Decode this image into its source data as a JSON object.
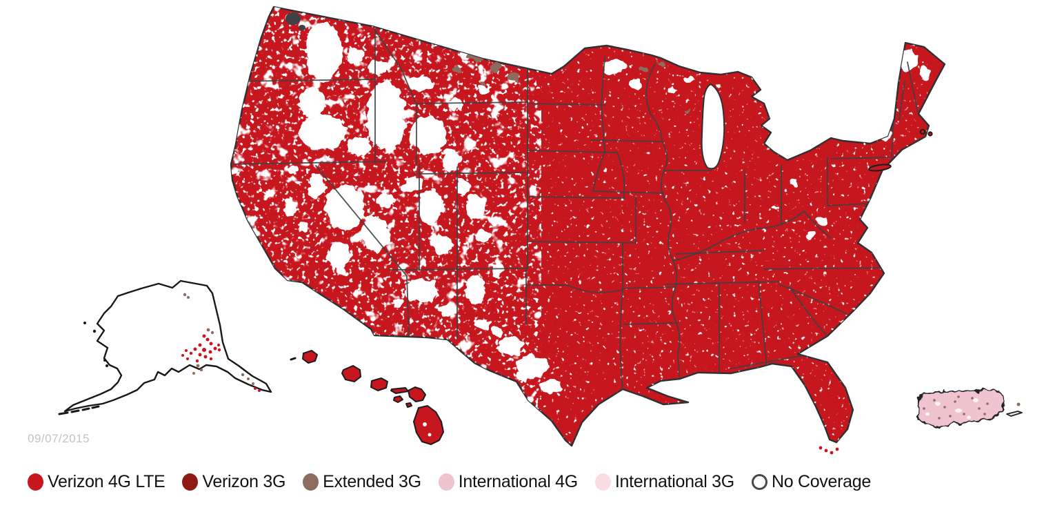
{
  "map": {
    "date_stamp": "09/07/2015",
    "colors": {
      "verizon_4g_lte": "#c6161e",
      "verizon_3g": "#8e1a14",
      "extended_3g": "#8d6c60",
      "international_4g": "#efc3d0",
      "international_3g": "#fadde4",
      "no_coverage": "#ffffff",
      "coast": "#2e3133",
      "state_line": "#3c4145",
      "label": "#121212",
      "date": "#c3c2c8",
      "bg": "#ffffff"
    },
    "regions": {
      "continental_us": "Verizon 4G LTE",
      "alaska": "No Coverage with scattered Verizon 4G LTE and Extended 3G",
      "hawaii": "Verizon 4G LTE",
      "puerto_rico": "International 4G"
    }
  },
  "legend": {
    "items": [
      {
        "id": "verizon-4g-lte",
        "label": "Verizon 4G LTE",
        "color": "#c6161e",
        "shape": "filled"
      },
      {
        "id": "verizon-3g",
        "label": "Verizon 3G",
        "color": "#8e1a14",
        "shape": "filled"
      },
      {
        "id": "extended-3g",
        "label": "Extended 3G",
        "color": "#8d6c60",
        "shape": "filled"
      },
      {
        "id": "international-4g",
        "label": "International 4G",
        "color": "#efc3d0",
        "shape": "filled"
      },
      {
        "id": "international-3g",
        "label": "International 3G",
        "color": "#fadde4",
        "shape": "filled"
      },
      {
        "id": "no-coverage",
        "label": "No Coverage",
        "color": "#ffffff",
        "shape": "ring"
      }
    ]
  }
}
